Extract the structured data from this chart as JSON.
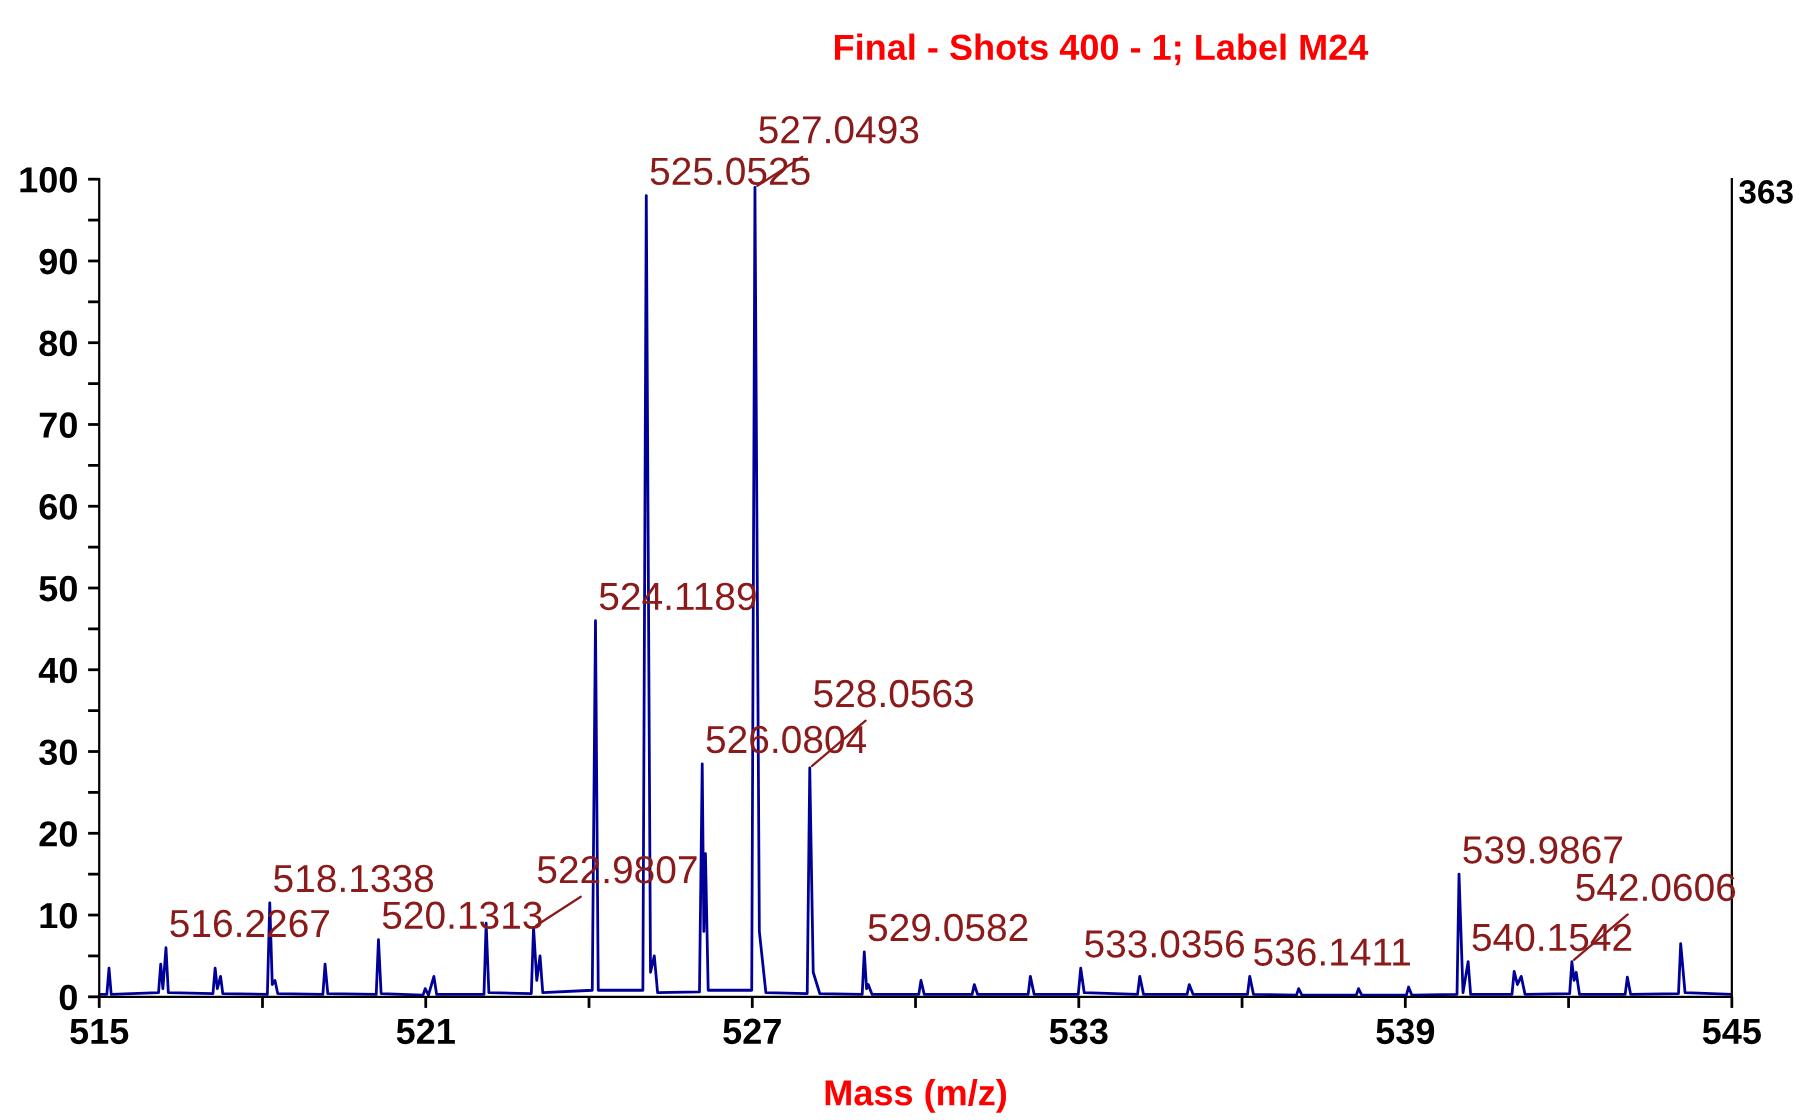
{
  "chart_data": {
    "type": "line",
    "title": "Final - Shots 400 - 1; Label M24",
    "xlabel": "Mass (m/z)",
    "xlim": [
      515,
      545
    ],
    "ylim": [
      0,
      100
    ],
    "xticks": [
      515,
      {
        "value": 518,
        "label": null
      },
      521,
      {
        "value": 524,
        "label": null
      },
      527,
      {
        "value": 530,
        "label": null
      },
      533,
      {
        "value": 536,
        "label": null
      },
      539,
      {
        "value": 542,
        "label": null
      },
      545
    ],
    "yticks": [
      0,
      {
        "value": 5,
        "label": null
      },
      10,
      {
        "value": 15,
        "label": null
      },
      20,
      {
        "value": 25,
        "label": null
      },
      30,
      {
        "value": 35,
        "label": null
      },
      40,
      {
        "value": 45,
        "label": null
      },
      50,
      {
        "value": 55,
        "label": null
      },
      60,
      {
        "value": 65,
        "label": null
      },
      70,
      {
        "value": 75,
        "label": null
      },
      80,
      {
        "value": 85,
        "label": null
      },
      90,
      {
        "value": 95,
        "label": null
      },
      100
    ],
    "grid": false,
    "marker": "none",
    "line_style": "solid",
    "series": [
      {
        "color": "#000099",
        "x": [
          515,
          515.14,
          515.18,
          515.22,
          516.09,
          516.13,
          516.17,
          516.2267,
          516.27,
          517.09,
          517.13,
          517.17,
          517.23,
          517.27,
          518.09,
          518.1338,
          518.18,
          518.23,
          518.28,
          519.11,
          519.15,
          519.2,
          520.09,
          520.1313,
          520.18,
          520.95,
          520.99,
          521.05,
          521.15,
          521.2,
          522.07,
          522.11,
          522.16,
          522.94,
          522.9807,
          523.04,
          523.1,
          523.15,
          524.06,
          524.1189,
          524.17,
          524.99,
          525.0525,
          525.13,
          525.2,
          525.26,
          526.03,
          526.0804,
          526.11,
          526.14,
          526.19,
          526.99,
          527.0493,
          527.13,
          527.25,
          528.01,
          528.0563,
          528.12,
          528.24,
          529.02,
          529.0582,
          529.1,
          529.13,
          529.2,
          530.06,
          530.1,
          530.16,
          531.04,
          531.08,
          531.14,
          532.07,
          532.11,
          532.18,
          532.99,
          533.0356,
          533.1,
          534.08,
          534.12,
          534.19,
          534.99,
          535.03,
          535.1,
          536.1,
          536.1411,
          536.21,
          537.0,
          537.04,
          537.1,
          538.1,
          538.14,
          538.2,
          539.02,
          539.06,
          539.12,
          539.95,
          539.9867,
          540.06,
          540.1542,
          540.2,
          540.96,
          541.0,
          541.06,
          541.13,
          541.2,
          542.02,
          542.0606,
          542.1,
          542.14,
          542.2,
          543.04,
          543.08,
          543.14,
          544.02,
          544.06,
          544.14,
          545
        ],
        "values": [
          0.3,
          0.3,
          3.5,
          0.3,
          0.5,
          4,
          1,
          6,
          0.5,
          0.4,
          3.5,
          1,
          2.5,
          0.4,
          0.3,
          11.5,
          1.5,
          2,
          0.4,
          0.3,
          4,
          0.4,
          0.3,
          7,
          0.4,
          0.2,
          1,
          0.2,
          2.5,
          0.3,
          0.3,
          9,
          0.5,
          0.4,
          8.5,
          2,
          5,
          0.5,
          0.8,
          46,
          0.8,
          0.8,
          98,
          3,
          5,
          0.5,
          0.6,
          28.5,
          8,
          17.5,
          0.8,
          0.8,
          99,
          8,
          0.5,
          0.4,
          28,
          3,
          0.4,
          0.3,
          5.5,
          1,
          1.5,
          0.3,
          0.3,
          2,
          0.3,
          0.3,
          1.5,
          0.3,
          0.3,
          2.5,
          0.3,
          0.3,
          3.5,
          0.5,
          0.3,
          2.5,
          0.3,
          0.3,
          1.5,
          0.3,
          0.3,
          2.5,
          0.3,
          0.2,
          1,
          0.2,
          0.2,
          1,
          0.2,
          0.2,
          1.2,
          0.2,
          0.3,
          15,
          0.5,
          4.3,
          0.3,
          0.3,
          3.1,
          1.5,
          2.5,
          0.3,
          0.4,
          4.3,
          2,
          3,
          0.3,
          0.3,
          2.4,
          0.3,
          0.4,
          6.5,
          0.5,
          0.3
        ]
      }
    ],
    "annotations": [
      {
        "text": "516.2267",
        "x": 516.2267,
        "y": 6
      },
      {
        "text": "518.1338",
        "x": 518.1338,
        "y": 11.5
      },
      {
        "text": "520.1313",
        "x": 520.1313,
        "y": 7
      },
      {
        "text": "522.9807",
        "x": 522.9807,
        "y": 8.5
      },
      {
        "text": "524.1189",
        "x": 524.1189,
        "y": 46
      },
      {
        "text": "525.0525",
        "x": 525.0525,
        "y": 98
      },
      {
        "text": "526.0804",
        "x": 526.0804,
        "y": 28.5
      },
      {
        "text": "527.0493",
        "x": 527.0493,
        "y": 99
      },
      {
        "text": "528.0563",
        "x": 528.0563,
        "y": 28
      },
      {
        "text": "529.0582",
        "x": 529.0582,
        "y": 5.5
      },
      {
        "text": "533.0356",
        "x": 533.0356,
        "y": 3.5
      },
      {
        "text": "536.1411",
        "x": 536.1411,
        "y": 2.5
      },
      {
        "text": "539.9867",
        "x": 539.9867,
        "y": 15
      },
      {
        "text": "540.1542",
        "x": 540.1542,
        "y": 4.3
      },
      {
        "text": "542.0606",
        "x": 542.0606,
        "y": 4.3
      },
      "363"
    ]
  }
}
